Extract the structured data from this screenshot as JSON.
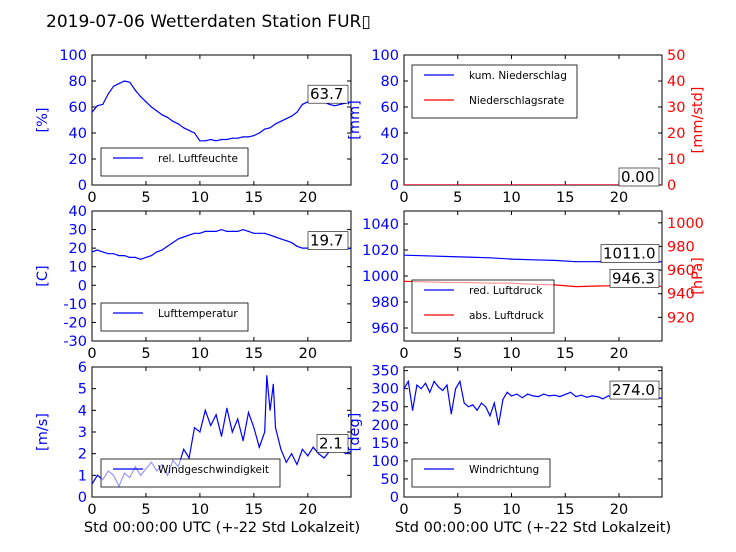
{
  "title": "2019-07-06 Wetterdaten Station FUR▯",
  "xlabel": "Std 00:00:00 UTC (+-22 Std Lokalzeit)",
  "colors": {
    "blue": "#0000ff",
    "red": "#ff0000",
    "light_blue": "#8080ff",
    "dark_red": "#990000"
  },
  "chart_data": [
    {
      "type": "line",
      "ylabel": "[%]",
      "xlim": [
        0,
        24
      ],
      "ylim": [
        0,
        100
      ],
      "xticks": [
        0,
        5,
        10,
        15,
        20
      ],
      "yticks": [
        0,
        20,
        40,
        60,
        80,
        100
      ],
      "legend": {
        "placement": "lower-left",
        "entries": [
          "rel. Luftfeuchte"
        ]
      },
      "last_value_label": "63.7",
      "series": [
        {
          "name": "rel. Luftfeuchte",
          "color": "#0000ff",
          "x": [
            0,
            0.5,
            1,
            1.5,
            2,
            2.5,
            3,
            3.5,
            4,
            4.5,
            5,
            5.5,
            6,
            6.5,
            7,
            7.5,
            8,
            8.5,
            9,
            9.5,
            10,
            10.5,
            11,
            11.5,
            12,
            12.5,
            13,
            13.5,
            14,
            14.5,
            15,
            15.5,
            16,
            16.5,
            17,
            17.5,
            18,
            18.5,
            19,
            19.5,
            20,
            20.5,
            21,
            21.5,
            22,
            22.5,
            23,
            23.5,
            24
          ],
          "y": [
            56,
            61,
            62,
            70,
            76,
            78,
            80,
            79,
            73,
            68,
            64,
            60,
            57,
            54,
            52,
            49,
            47,
            44,
            42,
            40,
            34,
            34,
            35,
            34,
            35,
            35,
            36,
            36,
            37,
            37,
            38,
            40,
            43,
            44,
            47,
            49,
            51,
            53,
            56,
            62,
            64,
            66,
            66,
            64,
            62,
            61,
            62,
            63,
            63.7
          ]
        }
      ]
    },
    {
      "type": "line",
      "ylabel": "[mm]",
      "y2label": "[mm/std]",
      "xlim": [
        0,
        24
      ],
      "ylim": [
        0,
        100
      ],
      "y2lim": [
        0,
        50
      ],
      "xticks": [
        0,
        5,
        10,
        15,
        20
      ],
      "yticks": [
        0,
        20,
        40,
        60,
        80,
        100
      ],
      "y2ticks": [
        0,
        10,
        20,
        30,
        40,
        50
      ],
      "legend": {
        "placement": "upper-left",
        "entries": [
          "kum. Niederschlag",
          "Niederschlagsrate"
        ]
      },
      "last_value_label": "0.00",
      "series": [
        {
          "name": "kum. Niederschlag",
          "color": "#0000ff",
          "axis": "left",
          "x": [
            0,
            24
          ],
          "y": [
            0,
            0
          ]
        },
        {
          "name": "Niederschlagsrate",
          "color": "#ff0000",
          "axis": "right",
          "x": [
            0,
            24
          ],
          "y": [
            0,
            0
          ]
        }
      ]
    },
    {
      "type": "line",
      "ylabel": "[C]",
      "xlim": [
        0,
        24
      ],
      "ylim": [
        -30,
        40
      ],
      "xticks": [
        0,
        5,
        10,
        15,
        20
      ],
      "yticks": [
        -30,
        -20,
        -10,
        0,
        10,
        20,
        30,
        40
      ],
      "legend": {
        "placement": "lower-left",
        "entries": [
          "Lufttemperatur"
        ]
      },
      "last_value_label": "19.7",
      "series": [
        {
          "name": "Lufttemperatur",
          "color": "#0000ff",
          "x": [
            0,
            0.5,
            1,
            1.5,
            2,
            2.5,
            3,
            3.5,
            4,
            4.5,
            5,
            5.5,
            6,
            6.5,
            7,
            7.5,
            8,
            8.5,
            9,
            9.5,
            10,
            10.5,
            11,
            11.5,
            12,
            12.5,
            13,
            13.5,
            14,
            14.5,
            15,
            15.5,
            16,
            16.5,
            17,
            17.5,
            18,
            18.5,
            19,
            19.5,
            20,
            20.5,
            21,
            21.5,
            22,
            22.5,
            23,
            23.5,
            24
          ],
          "y": [
            18,
            19,
            18,
            17,
            17,
            16,
            16,
            15,
            15,
            14,
            15,
            16,
            18,
            19,
            21,
            23,
            25,
            26,
            27,
            28,
            28,
            29,
            29,
            29,
            30,
            29,
            29,
            29,
            30,
            29,
            28,
            28,
            28,
            27,
            26,
            25,
            24,
            23,
            21,
            20,
            20,
            20,
            20,
            20,
            20,
            20,
            20,
            20,
            19.7
          ]
        }
      ]
    },
    {
      "type": "line",
      "ylabel": "",
      "y2label": "[hPa]",
      "xlim": [
        0,
        24
      ],
      "ylim": [
        950,
        1050
      ],
      "y2lim": [
        900,
        1010
      ],
      "xticks": [
        0,
        5,
        10,
        15,
        20
      ],
      "yticks": [
        960,
        980,
        1000,
        1020,
        1040
      ],
      "y2ticks": [
        920,
        940,
        960,
        980,
        1000
      ],
      "legend": {
        "placement": "lower-left",
        "entries": [
          "red. Luftdruck",
          "abs. Luftdruck"
        ]
      },
      "last_value_labels": [
        "1011.0",
        "946.3"
      ],
      "series": [
        {
          "name": "red. Luftdruck",
          "color": "#0000ff",
          "axis": "left",
          "x": [
            0,
            2,
            4,
            6,
            8,
            10,
            12,
            14,
            16,
            18,
            20,
            22,
            24
          ],
          "y": [
            1016,
            1015.5,
            1015,
            1014.5,
            1014,
            1013,
            1012.5,
            1012,
            1011,
            1011,
            1011.5,
            1011,
            1011
          ]
        },
        {
          "name": "abs. Luftdruck",
          "color": "#ff0000",
          "axis": "right",
          "x": [
            0,
            2,
            4,
            6,
            8,
            10,
            12,
            14,
            16,
            18,
            20,
            22,
            24
          ],
          "y": [
            950.5,
            950,
            949.5,
            949.5,
            949,
            949,
            948,
            947.5,
            946,
            946.5,
            946.8,
            946.3,
            946.3
          ]
        }
      ]
    },
    {
      "type": "line",
      "ylabel": "[m/s]",
      "xlim": [
        0,
        24
      ],
      "ylim": [
        0,
        6
      ],
      "xticks": [
        0,
        5,
        10,
        15,
        20
      ],
      "yticks": [
        0,
        1,
        2,
        3,
        4,
        5,
        6
      ],
      "legend": {
        "placement": "lower-left",
        "entries": [
          "Windgeschwindigkeit"
        ]
      },
      "last_value_label": "2.1",
      "series": [
        {
          "name": "Windgeschwindigkeit",
          "color": "#0000ff",
          "x": [
            0,
            0.5,
            1,
            1.5,
            2,
            2.5,
            3,
            3.5,
            4,
            4.5,
            5,
            5.5,
            6,
            6.5,
            7,
            7.5,
            8,
            8.5,
            9,
            9.5,
            10,
            10.5,
            11,
            11.5,
            12,
            12.5,
            13,
            13.5,
            14,
            14.5,
            15,
            15.5,
            16,
            16.2,
            16.5,
            16.8,
            17,
            17.5,
            18,
            18.5,
            19,
            19.5,
            20,
            20.5,
            21,
            21.5,
            22,
            22.5,
            23,
            23.5,
            24
          ],
          "y": [
            0.6,
            1.0,
            0.8,
            1.2,
            1.0,
            0.5,
            1.1,
            0.9,
            1.4,
            1.0,
            1.3,
            1.6,
            1.2,
            1.5,
            1.0,
            1.7,
            1.4,
            2.2,
            1.8,
            3.2,
            3.0,
            4.0,
            3.3,
            3.8,
            2.8,
            4.1,
            3.0,
            3.6,
            2.6,
            3.9,
            3.2,
            2.3,
            3.0,
            5.6,
            4.0,
            5.2,
            3.2,
            2.2,
            1.6,
            2.0,
            1.5,
            2.2,
            1.9,
            2.3,
            2.0,
            1.8,
            2.1,
            2.5,
            2.2,
            2.0,
            2.1
          ]
        }
      ]
    },
    {
      "type": "line",
      "ylabel": "[deg]",
      "xlim": [
        0,
        24
      ],
      "ylim": [
        0,
        360
      ],
      "xticks": [
        0,
        5,
        10,
        15,
        20
      ],
      "yticks": [
        0,
        50,
        100,
        150,
        200,
        250,
        300,
        350
      ],
      "legend": {
        "placement": "lower-left",
        "entries": [
          "Windrichtung"
        ]
      },
      "last_value_label": "274.0",
      "series": [
        {
          "name": "Windrichtung",
          "color": "#0000ff",
          "x": [
            0,
            0.4,
            0.8,
            1.2,
            1.6,
            2,
            2.4,
            2.8,
            3.2,
            3.6,
            4,
            4.4,
            4.8,
            5.2,
            5.6,
            6,
            6.4,
            6.8,
            7.2,
            7.6,
            8,
            8.4,
            8.8,
            9.2,
            9.6,
            10,
            10.5,
            11,
            11.5,
            12,
            12.5,
            13,
            13.5,
            14,
            14.5,
            15,
            15.5,
            16,
            16.5,
            17,
            17.5,
            18,
            18.5,
            19,
            19.5,
            20,
            20.5,
            21,
            21.5,
            22,
            22.5,
            23,
            23.5,
            24
          ],
          "y": [
            300,
            320,
            240,
            310,
            300,
            315,
            290,
            320,
            305,
            295,
            310,
            230,
            300,
            320,
            260,
            250,
            255,
            240,
            260,
            250,
            225,
            260,
            200,
            270,
            290,
            280,
            285,
            275,
            285,
            280,
            278,
            285,
            280,
            282,
            278,
            284,
            290,
            278,
            282,
            276,
            280,
            278,
            272,
            280,
            276,
            278,
            274,
            278,
            275,
            276,
            272,
            276,
            274,
            274
          ]
        }
      ]
    }
  ]
}
